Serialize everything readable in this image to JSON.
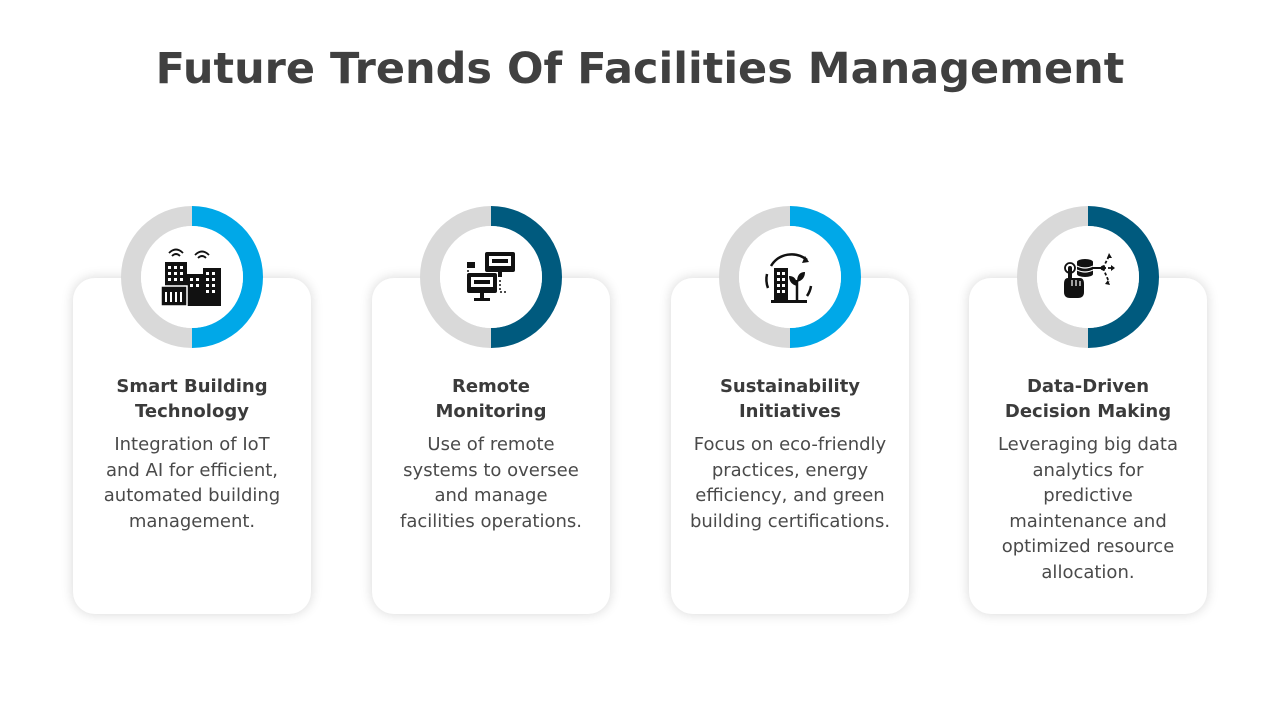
{
  "title": "Future Trends Of Facilities Management",
  "colors": {
    "light_blue": "#00a8e8",
    "dark_blue": "#005a7e",
    "ring_gray": "#d9d9d9",
    "text": "#404040"
  },
  "items": [
    {
      "heading_1": "Smart Building",
      "heading_2": "Technology",
      "desc_lines": [
        "Integration of IoT",
        "and AI for efficient,",
        "automated building",
        "management."
      ],
      "icon": "smart-building-icon",
      "accent": "light_blue"
    },
    {
      "heading_1": "Remote",
      "heading_2": "Monitoring",
      "desc_lines": [
        "Use of remote",
        "systems to oversee",
        "and manage",
        "facilities operations."
      ],
      "icon": "remote-monitoring-icon",
      "accent": "dark_blue"
    },
    {
      "heading_1": "Sustainability",
      "heading_2": "Initiatives",
      "desc_lines": [
        "Focus on eco-friendly",
        "practices, energy",
        "efficiency, and green",
        "building certifications."
      ],
      "icon": "sustainable-building-icon",
      "accent": "light_blue"
    },
    {
      "heading_1": "Data-Driven",
      "heading_2": "Decision Making",
      "desc_lines": [
        "Leveraging big data",
        "analytics for",
        "predictive",
        "maintenance and",
        "optimized resource",
        "allocation."
      ],
      "icon": "data-decision-icon",
      "accent": "dark_blue"
    }
  ]
}
